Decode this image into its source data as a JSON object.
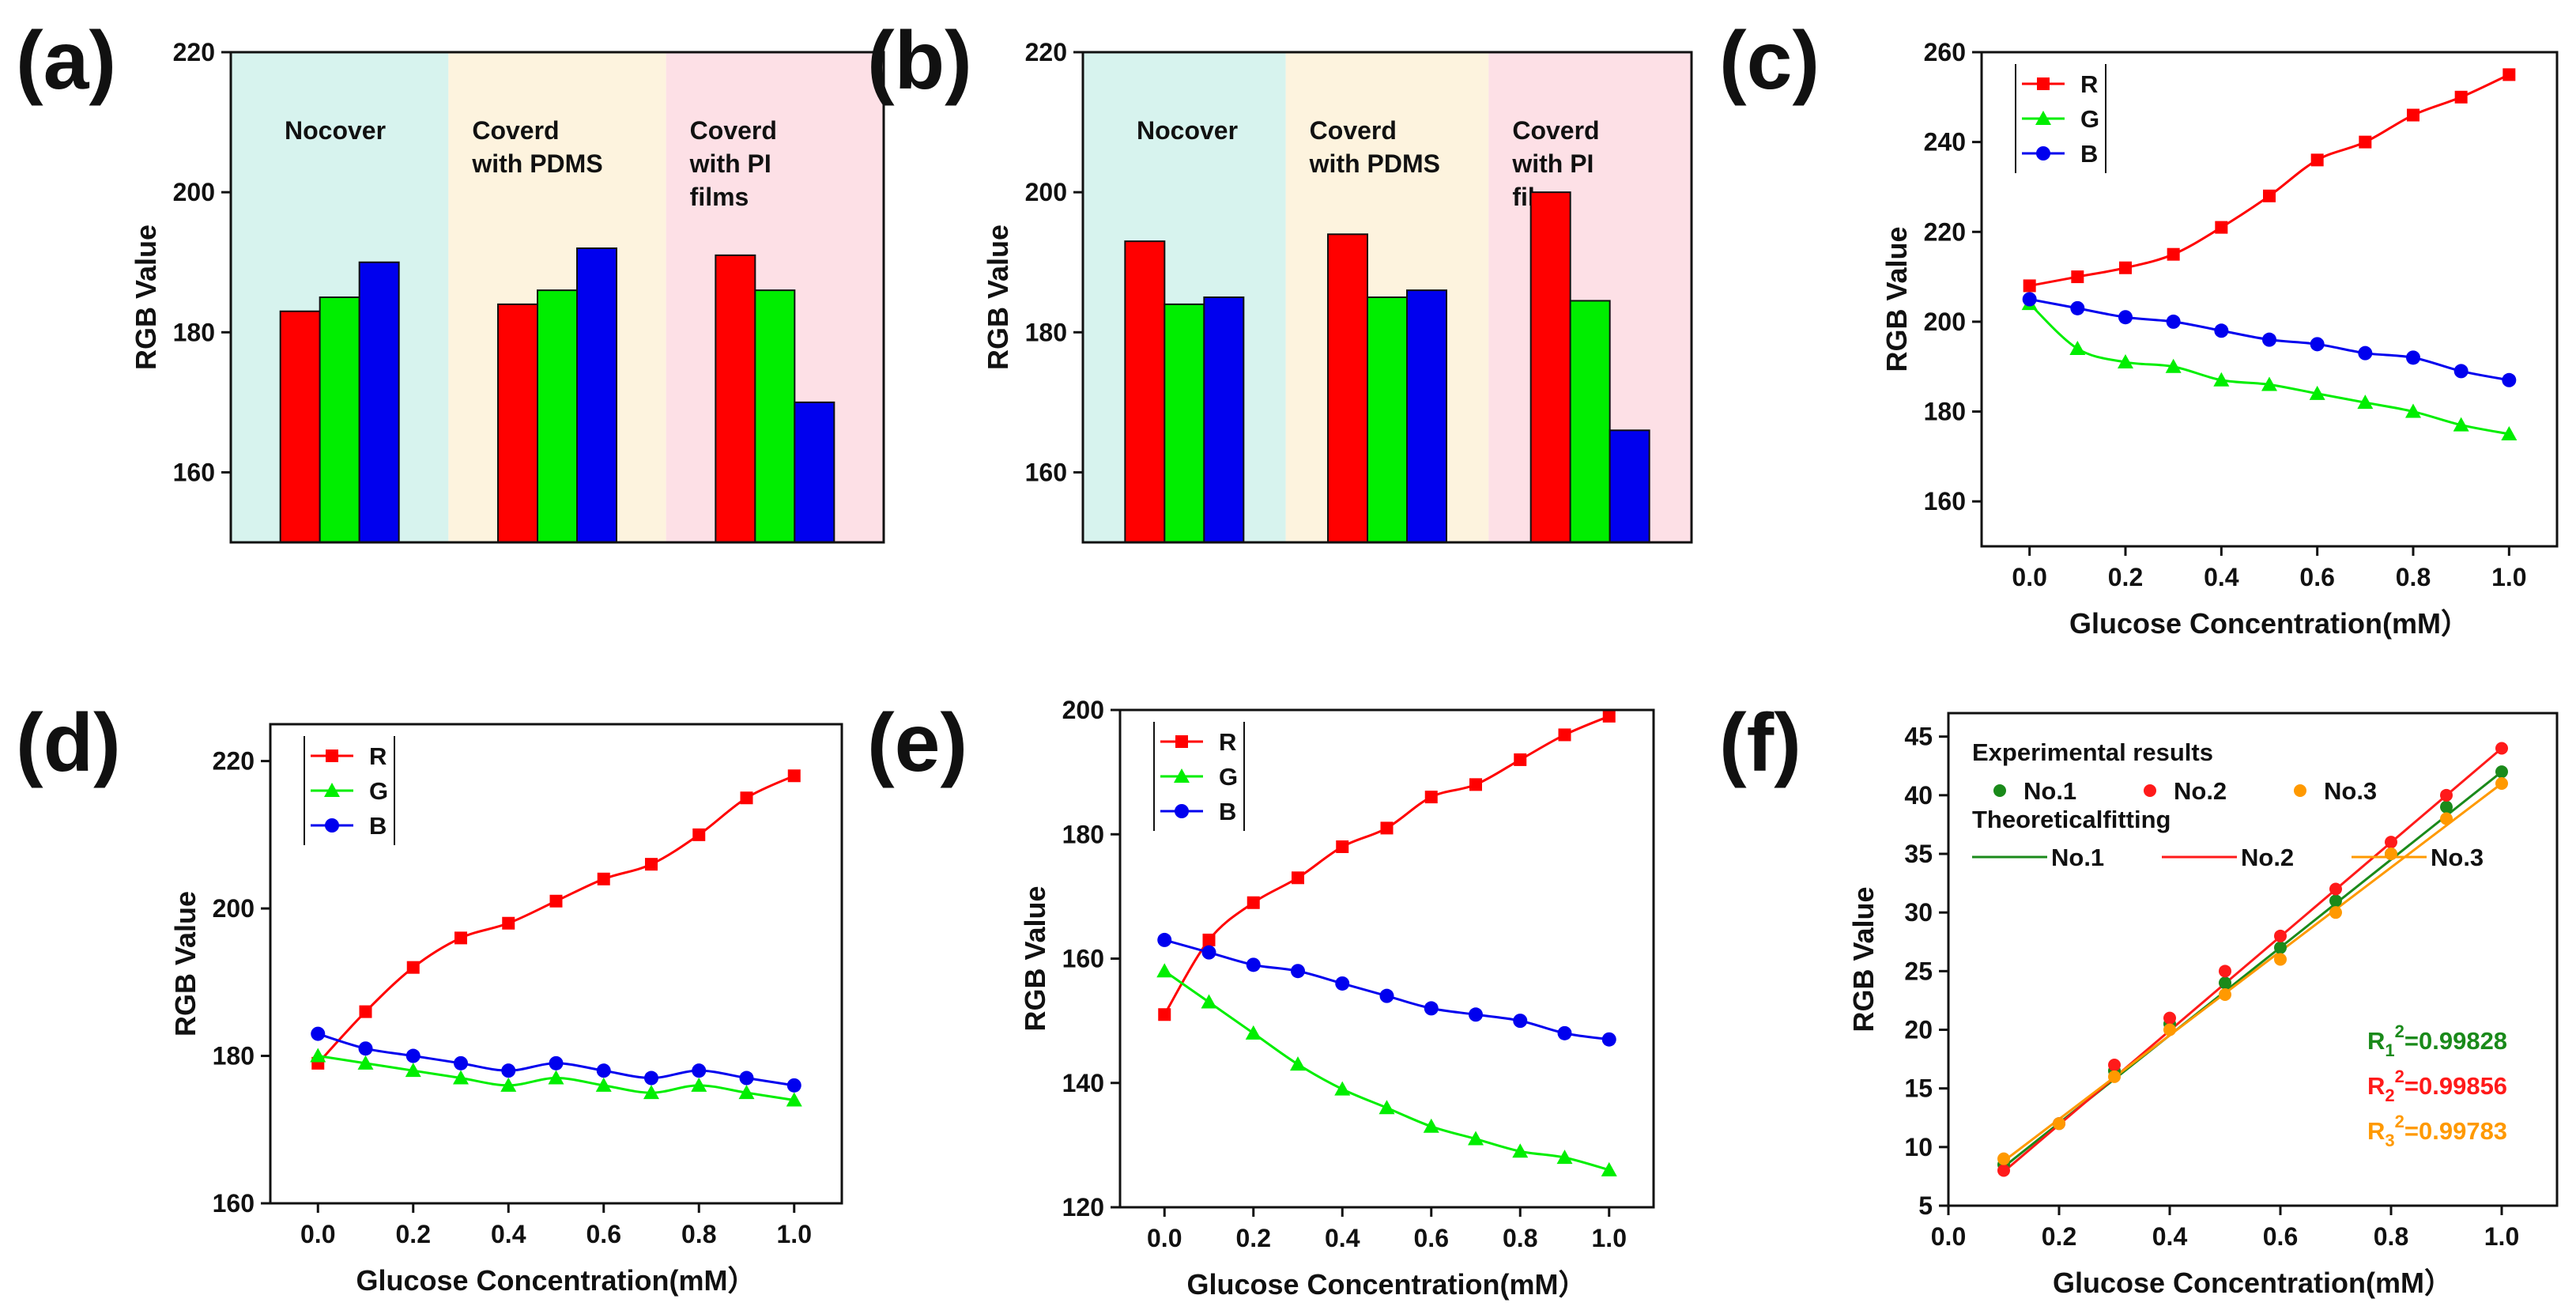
{
  "chart_data": [
    {
      "panel": "(a)",
      "type": "bar",
      "ylabel": "RGB Value",
      "ylim": [
        150,
        220
      ],
      "yticks": [
        160,
        180,
        200,
        220
      ],
      "regions": [
        {
          "label": [
            "Nocover"
          ],
          "color": "#d7f3ee"
        },
        {
          "label": [
            "Coverd",
            "with PDMS"
          ],
          "color": "#fdf3de"
        },
        {
          "label": [
            "Coverd",
            "with PI",
            "films"
          ],
          "color": "#fde0e6"
        }
      ],
      "series": [
        {
          "name": "R",
          "color": "#ff0000",
          "values": [
            183,
            184,
            191
          ]
        },
        {
          "name": "G",
          "color": "#00ee00",
          "values": [
            185,
            186,
            186
          ]
        },
        {
          "name": "B",
          "color": "#0000ee",
          "values": [
            190,
            192,
            170
          ]
        }
      ]
    },
    {
      "panel": "(b)",
      "type": "bar",
      "ylabel": "RGB Value",
      "ylim": [
        150,
        220
      ],
      "yticks": [
        160,
        180,
        200,
        220
      ],
      "regions": [
        {
          "label": [
            "Nocover"
          ],
          "color": "#d7f3ee"
        },
        {
          "label": [
            "Coverd",
            "with PDMS"
          ],
          "color": "#fdf3de"
        },
        {
          "label": [
            "Coverd",
            "with PI",
            "films"
          ],
          "color": "#fde0e6"
        }
      ],
      "series": [
        {
          "name": "R",
          "color": "#ff0000",
          "values": [
            193,
            194,
            200
          ]
        },
        {
          "name": "G",
          "color": "#00ee00",
          "values": [
            184,
            185,
            184.5
          ]
        },
        {
          "name": "B",
          "color": "#0000ee",
          "values": [
            185,
            186,
            166
          ]
        }
      ]
    },
    {
      "panel": "(c)",
      "type": "line",
      "xlabel": "Glucose Concentration(mM）",
      "ylabel": "RGB Value",
      "xlim": [
        -0.1,
        1.1
      ],
      "ylim": [
        150,
        260
      ],
      "xticks": [
        "0.0",
        "0.2",
        "0.4",
        "0.6",
        "0.8",
        "1.0"
      ],
      "yticks": [
        160,
        180,
        200,
        220,
        240,
        260
      ],
      "legend": "top-left",
      "x": [
        0,
        0.1,
        0.2,
        0.3,
        0.4,
        0.5,
        0.6,
        0.7,
        0.8,
        0.9,
        1.0
      ],
      "series": [
        {
          "name": "R",
          "color": "#ff0000",
          "marker": "square",
          "values": [
            208,
            210,
            212,
            215,
            221,
            228,
            236,
            240,
            246,
            250,
            255
          ]
        },
        {
          "name": "G",
          "color": "#00ee00",
          "marker": "triangle",
          "values": [
            204,
            194,
            191,
            190,
            187,
            186,
            184,
            182,
            180,
            177,
            175
          ]
        },
        {
          "name": "B",
          "color": "#0000ee",
          "marker": "circle",
          "values": [
            205,
            203,
            201,
            200,
            198,
            196,
            195,
            193,
            192,
            189,
            187
          ]
        }
      ]
    },
    {
      "panel": "(d)",
      "type": "line",
      "xlabel": "Glucose Concentration(mM）",
      "ylabel": "RGB Value",
      "xlim": [
        -0.1,
        1.1
      ],
      "ylim": [
        160,
        225
      ],
      "xticks": [
        "0.0",
        "0.2",
        "0.4",
        "0.6",
        "0.8",
        "1.0"
      ],
      "yticks": [
        160,
        180,
        200,
        220
      ],
      "legend": "top-left",
      "x": [
        0,
        0.1,
        0.2,
        0.3,
        0.4,
        0.5,
        0.6,
        0.7,
        0.8,
        0.9,
        1.0
      ],
      "series": [
        {
          "name": "R",
          "color": "#ff0000",
          "marker": "square",
          "values": [
            179,
            186,
            192,
            196,
            198,
            201,
            204,
            206,
            210,
            215,
            218
          ]
        },
        {
          "name": "G",
          "color": "#00ee00",
          "marker": "triangle",
          "values": [
            180,
            179,
            178,
            177,
            176,
            177,
            176,
            175,
            176,
            175,
            174
          ]
        },
        {
          "name": "B",
          "color": "#0000ee",
          "marker": "circle",
          "values": [
            183,
            181,
            180,
            179,
            178,
            179,
            178,
            177,
            178,
            177,
            176
          ]
        }
      ]
    },
    {
      "panel": "(e)",
      "type": "line",
      "xlabel": "Glucose Concentration(mM）",
      "ylabel": "RGB Value",
      "xlim": [
        -0.1,
        1.1
      ],
      "ylim": [
        120,
        200
      ],
      "xticks": [
        "0.0",
        "0.2",
        "0.4",
        "0.6",
        "0.8",
        "1.0"
      ],
      "yticks": [
        120,
        140,
        160,
        180,
        200
      ],
      "legend": "top-left",
      "x": [
        0,
        0.1,
        0.2,
        0.3,
        0.4,
        0.5,
        0.6,
        0.7,
        0.8,
        0.9,
        1.0
      ],
      "series": [
        {
          "name": "R",
          "color": "#ff0000",
          "marker": "square",
          "values": [
            151,
            163,
            169,
            173,
            178,
            181,
            186,
            188,
            192,
            196,
            199
          ]
        },
        {
          "name": "G",
          "color": "#00ee00",
          "marker": "triangle",
          "values": [
            158,
            153,
            148,
            143,
            139,
            136,
            133,
            131,
            129,
            128,
            126
          ]
        },
        {
          "name": "B",
          "color": "#0000ee",
          "marker": "circle",
          "values": [
            163,
            161,
            159,
            158,
            156,
            154,
            152,
            151,
            150,
            148,
            147
          ]
        }
      ]
    },
    {
      "panel": "(f)",
      "type": "scatter",
      "xlabel": "Glucose Concentration(mM）",
      "ylabel": "RGB Value",
      "xlim": [
        0,
        1.1
      ],
      "ylim": [
        5,
        47
      ],
      "xticks": [
        "0.0",
        "0.2",
        "0.4",
        "0.6",
        "0.8",
        "1.0"
      ],
      "yticks": [
        "5",
        "10",
        "15",
        "20",
        "25",
        "30",
        "35",
        "40",
        "45"
      ],
      "legend_exp_title": "Experimental results",
      "legend_fit_title": "Theoreticalfitting",
      "x": [
        0.1,
        0.2,
        0.3,
        0.4,
        0.5,
        0.6,
        0.7,
        0.8,
        0.9,
        1.0
      ],
      "series": [
        {
          "name": "No.1",
          "color": "#1a8a1a",
          "values": [
            8.5,
            12,
            16.5,
            20.5,
            24,
            27,
            31,
            35,
            39,
            42
          ],
          "fit": [
            8.3,
            42.0
          ],
          "r2": "R1²=0.99828"
        },
        {
          "name": "No.2",
          "color": "#ff1a1a",
          "values": [
            8,
            12,
            17,
            21,
            25,
            28,
            32,
            36,
            40,
            44
          ],
          "fit": [
            7.9,
            44.0
          ],
          "r2": "R2²=0.99856"
        },
        {
          "name": "No.3",
          "color": "#ff9900",
          "values": [
            9,
            12,
            16,
            20,
            23,
            26,
            30,
            35,
            38,
            41
          ],
          "fit": [
            8.8,
            41.0
          ],
          "r2": "R3²=0.99783"
        }
      ],
      "r2_labels": [
        {
          "base": "R",
          "sub": "1",
          "sup": "2",
          "rest": "=0.99828",
          "color": "#1a8a1a"
        },
        {
          "base": "R",
          "sub": "2",
          "sup": "2",
          "rest": "=0.99856",
          "color": "#ff1a1a"
        },
        {
          "base": "R",
          "sub": "3",
          "sup": "2",
          "rest": "=0.99783",
          "color": "#ff9900"
        }
      ]
    }
  ]
}
